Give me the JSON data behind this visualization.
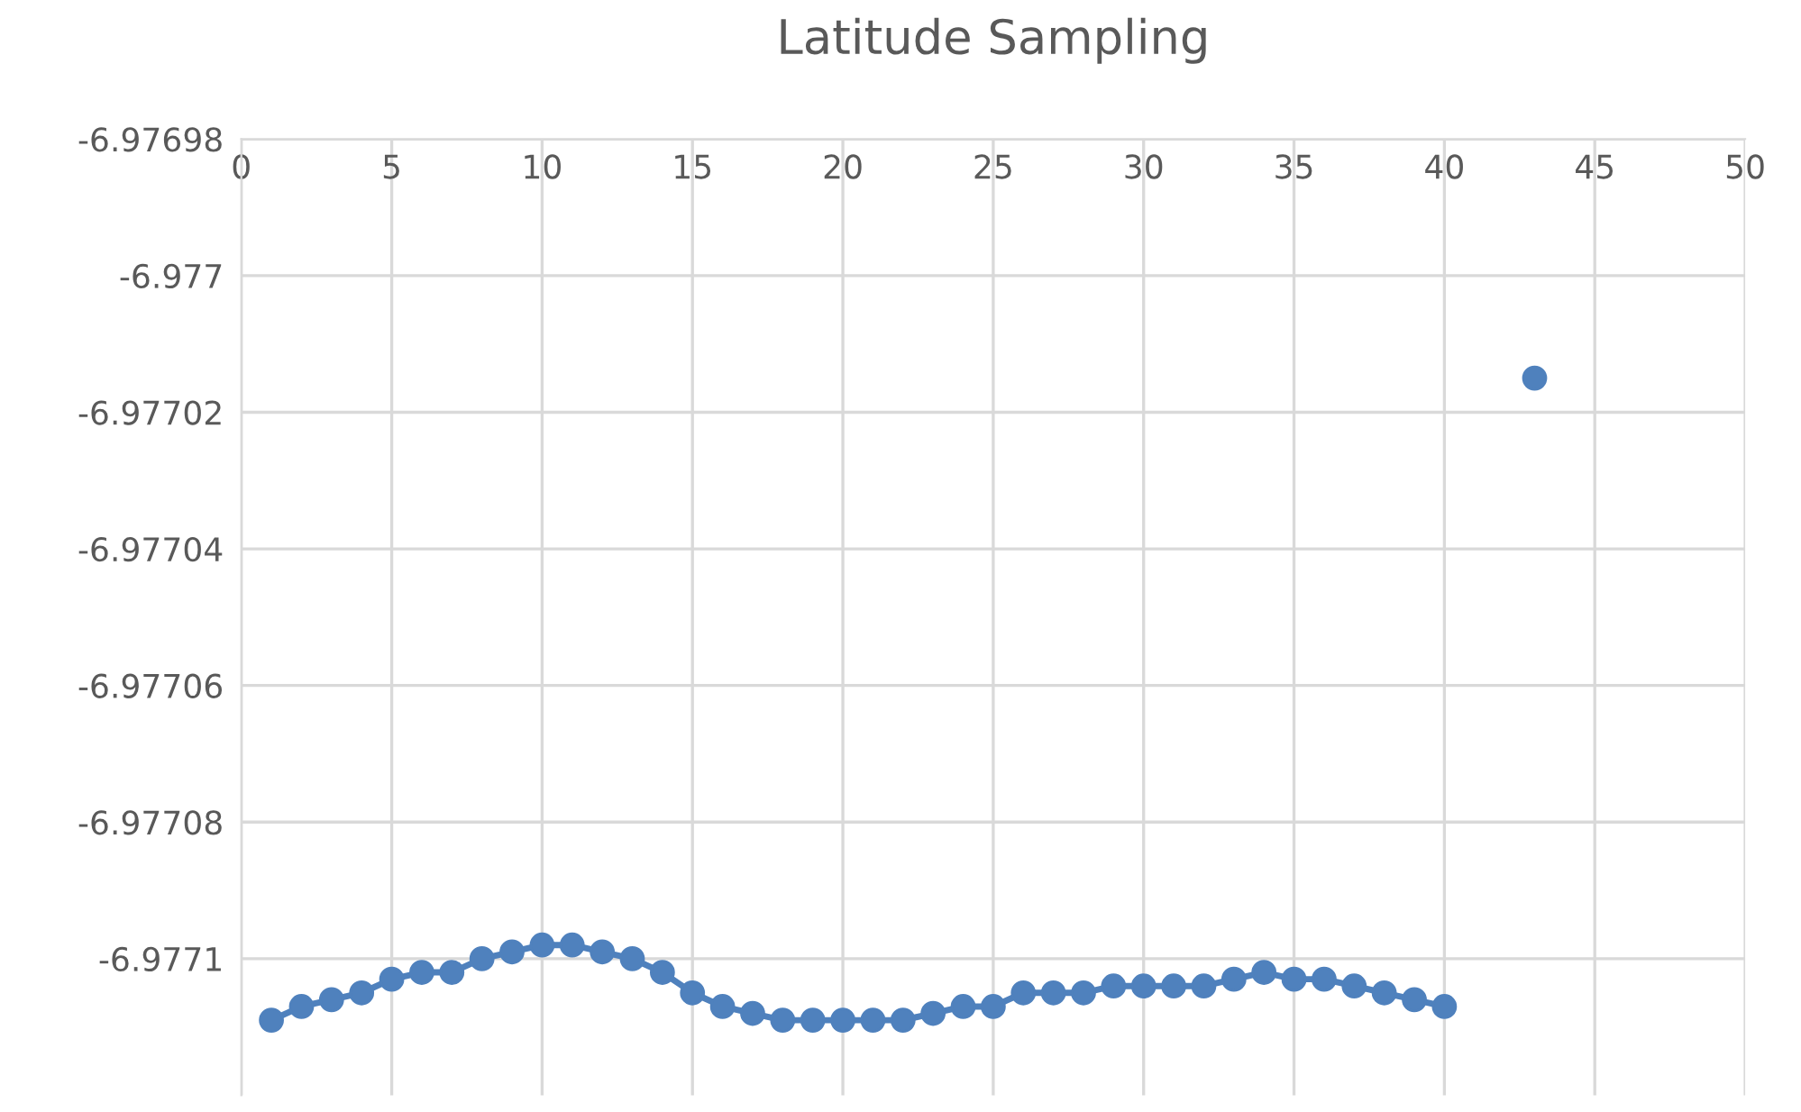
{
  "chart_data": {
    "type": "line",
    "title": "Latitude Sampling",
    "x": [
      1,
      2,
      3,
      4,
      5,
      6,
      7,
      8,
      9,
      10,
      11,
      12,
      13,
      14,
      15,
      16,
      17,
      18,
      19,
      20,
      21,
      22,
      23,
      24,
      25,
      26,
      27,
      28,
      29,
      30,
      31,
      32,
      33,
      34,
      35,
      36,
      37,
      38,
      39,
      40,
      41,
      42,
      43
    ],
    "series": [
      {
        "color": "#4f81bd",
        "values": [
          -6.977109,
          -6.977107,
          -6.977106,
          -6.977105,
          -6.977103,
          -6.977102,
          -6.977102,
          -6.9771,
          -6.977099,
          -6.977098,
          -6.977098,
          -6.977099,
          -6.9771,
          -6.977102,
          -6.977105,
          -6.977107,
          -6.977108,
          -6.977109,
          -6.977109,
          -6.977109,
          -6.977109,
          -6.977109,
          -6.977108,
          -6.977107,
          -6.977107,
          -6.977105,
          -6.977105,
          -6.977105,
          -6.977104,
          -6.977104,
          -6.977104,
          -6.977104,
          -6.977103,
          -6.977102,
          -6.977103,
          -6.977103,
          -6.977104,
          -6.977105,
          -6.977106,
          -6.977107,
          null,
          null,
          -6.977015
        ]
      }
    ],
    "xlim": [
      0,
      50
    ],
    "xticks": [
      0,
      5,
      10,
      15,
      20,
      25,
      30,
      35,
      40,
      45,
      50
    ],
    "ylim": [
      -6.97712,
      -6.97698
    ],
    "yticks": [
      -6.97698,
      -6.977,
      -6.97702,
      -6.97704,
      -6.97706,
      -6.97708,
      -6.9771
    ],
    "grid": true,
    "marker": "circle",
    "line_style": "solid"
  }
}
